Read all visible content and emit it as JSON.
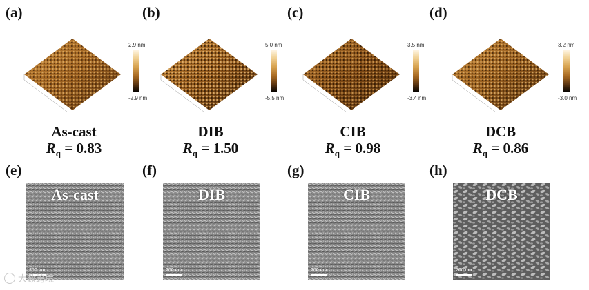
{
  "afm_panels": [
    {
      "label": "(a)",
      "sample": "As-cast",
      "rq_value": "0.83",
      "cb_top": "2.9 nm",
      "cb_bottom": "-2.9 nm"
    },
    {
      "label": "(b)",
      "sample": "DIB",
      "rq_value": "1.50",
      "cb_top": "5.0 nm",
      "cb_bottom": "-5.5 nm"
    },
    {
      "label": "(c)",
      "sample": "CIB",
      "rq_value": "0.98",
      "cb_top": "3.5 nm",
      "cb_bottom": "-3.4 nm"
    },
    {
      "label": "(d)",
      "sample": "DCB",
      "rq_value": "0.86",
      "cb_top": "3.2 nm",
      "cb_bottom": "-3.0 nm"
    }
  ],
  "rq_symbol": "R",
  "rq_subscript": "q",
  "rq_equals": " = ",
  "sem_panels": [
    {
      "label": "(e)",
      "title": "As-cast",
      "scale": "200 nm"
    },
    {
      "label": "(f)",
      "title": "DIB",
      "scale": "200 nm"
    },
    {
      "label": "(g)",
      "title": "CIB",
      "scale": "200 nm"
    },
    {
      "label": "(h)",
      "title": "DCB",
      "scale": "200 nm"
    }
  ],
  "watermark": "大数跨境",
  "colors": {
    "afm_dark": "#3a1f08",
    "afm_light": "#d9a45a",
    "sem_dark": "#4a4a4a",
    "sem_light": "#d8d8d8"
  }
}
